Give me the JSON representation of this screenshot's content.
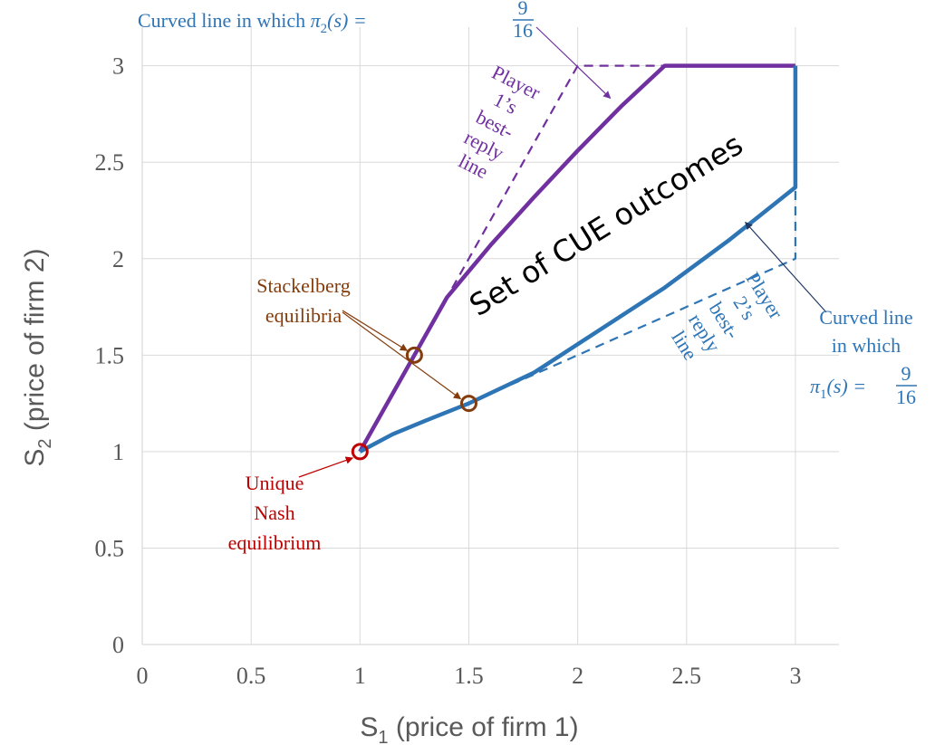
{
  "chart_data": {
    "type": "line",
    "xlabel": {
      "prefix": "S",
      "sub": "1",
      "text": " (price of firm 1)"
    },
    "ylabel": {
      "prefix": "S",
      "sub": "2",
      "text": " (price of firm 2)"
    },
    "xlim": [
      0,
      3.2
    ],
    "ylim": [
      0,
      3.2
    ],
    "x_ticks": [
      "0",
      "0.5",
      "1",
      "1.5",
      "2",
      "2.5",
      "3"
    ],
    "y_ticks": [
      "0",
      "0.5",
      "1",
      "1.5",
      "2",
      "2.5",
      "3"
    ],
    "grid": true,
    "colors": {
      "purple": "#7030A0",
      "blue": "#2E75B6",
      "brown": "#843C0C",
      "red": "#C00000",
      "navy": "#1F3864",
      "grid": "#D9D9D9"
    },
    "series": [
      {
        "role": "purple-curve",
        "style": "solid",
        "points": [
          [
            1,
            1
          ],
          [
            1.25,
            1.5
          ],
          [
            1.4,
            1.8
          ],
          [
            1.6,
            2.07
          ],
          [
            1.8,
            2.32
          ],
          [
            2.0,
            2.56
          ],
          [
            2.2,
            2.79
          ],
          [
            2.4,
            3.0
          ],
          [
            3.0,
            3.0
          ]
        ]
      },
      {
        "role": "blue-curve",
        "style": "solid",
        "points": [
          [
            1,
            1
          ],
          [
            1.05,
            1.03
          ],
          [
            1.15,
            1.09
          ],
          [
            1.3,
            1.16
          ],
          [
            1.5,
            1.25
          ],
          [
            1.8,
            1.41
          ],
          [
            2.1,
            1.63
          ],
          [
            2.4,
            1.85
          ],
          [
            2.7,
            2.1
          ],
          [
            3.0,
            2.37
          ],
          [
            3.0,
            3.0
          ]
        ]
      },
      {
        "role": "player1-best-reply",
        "style": "dashed",
        "points": [
          [
            1.25,
            1.5
          ],
          [
            1.35,
            1.7
          ],
          [
            2.0,
            3.0
          ],
          [
            2.4,
            3.0
          ]
        ]
      },
      {
        "role": "player2-best-reply",
        "style": "dashed",
        "points": [
          [
            1.5,
            1.25
          ],
          [
            1.7,
            1.35
          ],
          [
            3.0,
            2.0
          ],
          [
            3.0,
            2.37
          ]
        ]
      }
    ],
    "markers": [
      {
        "role": "nash",
        "x": 1,
        "y": 1
      },
      {
        "role": "stackelberg",
        "x": 1.25,
        "y": 1.5
      },
      {
        "role": "stackelberg",
        "x": 1.5,
        "y": 1.25
      }
    ],
    "annotations": {
      "curve2_title": "Curved line in which ",
      "curve2_pi": "π",
      "curve2_sub": "2",
      "curve2_arg": "(s) = ",
      "curve2_num": "9",
      "curve2_den": "16",
      "curve1_l1": "Curved line",
      "curve1_l2": "in which",
      "curve1_pi": "π",
      "curve1_sub": "1",
      "curve1_arg": "(s) = ",
      "curve1_num": "9",
      "curve1_den": "16",
      "p1_lines": [
        "Player",
        "1’s",
        "best-",
        "reply",
        "line"
      ],
      "p2_lines": [
        "Player",
        "2’s",
        "best-",
        "reply",
        "line"
      ],
      "cue": "Set of CUE outcomes",
      "stackelberg_l1": "Stackelberg",
      "stackelberg_l2": "equilibria",
      "nash_l1": "Unique",
      "nash_l2": "Nash",
      "nash_l3": "equilibrium"
    }
  }
}
